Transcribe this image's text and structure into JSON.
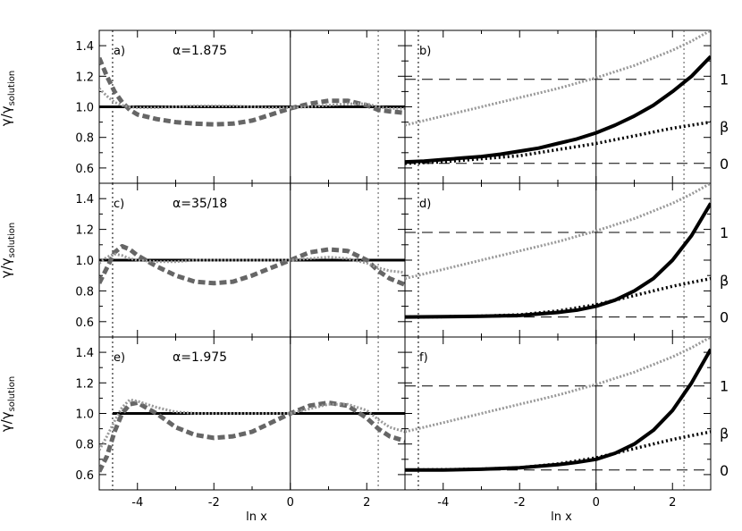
{
  "figure": {
    "ylabel_left": "γ/γ",
    "ylabel_sub": "solution",
    "xlabel": "ln x"
  },
  "chart_data": [
    {
      "id": "a",
      "panel_label": "a)",
      "annotation": "α=1.875",
      "type": "line",
      "xlim": [
        -5,
        3
      ],
      "ylim": [
        0.5,
        1.5
      ],
      "vlines": {
        "zero": 0,
        "left_cut": -4.65,
        "right_cut": 2.3
      },
      "x_ticks": [
        "-4",
        "-2",
        "0",
        "2"
      ],
      "y_ticks": [
        "0.6",
        "0.8",
        "1.0",
        "1.2",
        "1.4"
      ],
      "series": [
        {
          "style": "solid",
          "x": [
            -5,
            3
          ],
          "y": [
            1.0,
            1.0
          ]
        },
        {
          "style": "dashed",
          "x": [
            -5,
            -4.8,
            -4.6,
            -4.4,
            -4.2,
            -4,
            -3.5,
            -3,
            -2.5,
            -2,
            -1.5,
            -1,
            -0.5,
            0,
            0.5,
            1,
            1.5,
            2,
            2.3,
            2.6,
            3
          ],
          "y": [
            1.32,
            1.2,
            1.1,
            1.03,
            0.98,
            0.95,
            0.92,
            0.9,
            0.89,
            0.885,
            0.89,
            0.91,
            0.95,
            0.99,
            1.02,
            1.04,
            1.04,
            1.01,
            0.98,
            0.97,
            0.96
          ]
        },
        {
          "style": "dotted-grey",
          "x": [
            -5,
            -4.8,
            -4.6,
            -4.4,
            -4.2,
            -4,
            -3.5,
            -3,
            -2.5,
            -2,
            -1.5,
            -1,
            -0.5,
            0,
            0.5,
            1,
            1.5,
            2,
            2.3,
            2.6,
            3
          ],
          "y": [
            1.12,
            1.07,
            1.03,
            1.01,
            1.0,
            0.995,
            0.995,
            1.0,
            1.005,
            1.005,
            1.005,
            1.0,
            0.995,
            0.995,
            1.0,
            1.01,
            1.02,
            1.02,
            1.0,
            0.99,
            0.99
          ]
        }
      ]
    },
    {
      "id": "b",
      "panel_label": "b)",
      "annotation": "",
      "type": "line",
      "xlim": [
        -5,
        3
      ],
      "ylim": [
        0.5,
        1.5
      ],
      "vlines": {
        "zero": 0,
        "left_cut": -4.65,
        "right_cut": 2.3
      },
      "hlines": [
        0.63,
        1.18
      ],
      "x_ticks": [
        "-4",
        "-2",
        "0",
        "2"
      ],
      "right_labels": [
        {
          "text": "1",
          "y": 1.18
        },
        {
          "text": "β",
          "y": 0.87
        },
        {
          "text": "0",
          "y": 0.63
        }
      ],
      "series": [
        {
          "style": "solid-thick",
          "x": [
            -5,
            -4.5,
            -4,
            -3.5,
            -3,
            -2.5,
            -2,
            -1.5,
            -1,
            -0.5,
            0,
            0.5,
            1,
            1.5,
            2,
            2.5,
            3
          ],
          "y": [
            0.64,
            0.645,
            0.655,
            0.665,
            0.675,
            0.69,
            0.71,
            0.73,
            0.76,
            0.79,
            0.83,
            0.88,
            0.94,
            1.01,
            1.1,
            1.2,
            1.33
          ]
        },
        {
          "style": "dotted",
          "x": [
            -5,
            -4,
            -3,
            -2,
            -1,
            0,
            1,
            2,
            3
          ],
          "y": [
            0.63,
            0.64,
            0.66,
            0.68,
            0.72,
            0.76,
            0.81,
            0.86,
            0.9
          ]
        },
        {
          "style": "dotted-grey",
          "x": [
            -5,
            -4,
            -3,
            -2,
            -1,
            0,
            1,
            2,
            2.5,
            3
          ],
          "y": [
            0.88,
            0.94,
            1.0,
            1.06,
            1.12,
            1.19,
            1.27,
            1.37,
            1.43,
            1.5
          ]
        }
      ]
    },
    {
      "id": "c",
      "panel_label": "c)",
      "annotation": "α=35/18",
      "type": "line",
      "xlim": [
        -5,
        3
      ],
      "ylim": [
        0.5,
        1.5
      ],
      "vlines": {
        "zero": 0,
        "left_cut": -4.65,
        "right_cut": 2.3
      },
      "x_ticks": [
        "-4",
        "-2",
        "0",
        "2"
      ],
      "y_ticks": [
        "0.6",
        "0.8",
        "1.0",
        "1.2",
        "1.4"
      ],
      "series": [
        {
          "style": "solid",
          "x": [
            -5,
            3
          ],
          "y": [
            1.0,
            1.0
          ]
        },
        {
          "style": "dashed",
          "x": [
            -5,
            -4.8,
            -4.6,
            -4.4,
            -4.2,
            -4,
            -3.5,
            -3,
            -2.5,
            -2,
            -1.5,
            -1,
            -0.5,
            0,
            0.5,
            1,
            1.5,
            2,
            2.3,
            2.6,
            3
          ],
          "y": [
            0.85,
            0.95,
            1.05,
            1.09,
            1.07,
            1.03,
            0.96,
            0.9,
            0.86,
            0.85,
            0.86,
            0.9,
            0.95,
            1.0,
            1.05,
            1.07,
            1.06,
            1.0,
            0.93,
            0.88,
            0.84
          ]
        },
        {
          "style": "dotted-grey",
          "x": [
            -5,
            -4.8,
            -4.6,
            -4.4,
            -4.2,
            -4,
            -3.5,
            -3,
            -2.5,
            -2,
            -1.5,
            -1,
            -0.5,
            0,
            0.5,
            1,
            1.5,
            2,
            2.3,
            2.6,
            3
          ],
          "y": [
            0.98,
            1.02,
            1.04,
            1.03,
            1.01,
            1.0,
            0.99,
            0.99,
            1.0,
            1.0,
            1.0,
            1.0,
            1.0,
            1.0,
            1.01,
            1.02,
            1.01,
            0.98,
            0.95,
            0.93,
            0.92
          ]
        }
      ]
    },
    {
      "id": "d",
      "panel_label": "d)",
      "annotation": "",
      "type": "line",
      "xlim": [
        -5,
        3
      ],
      "ylim": [
        0.5,
        1.5
      ],
      "vlines": {
        "zero": 0,
        "left_cut": -4.65,
        "right_cut": 2.3
      },
      "hlines": [
        0.63,
        1.18
      ],
      "x_ticks": [
        "-4",
        "-2",
        "0",
        "2"
      ],
      "right_labels": [
        {
          "text": "1",
          "y": 1.18
        },
        {
          "text": "β",
          "y": 0.87
        },
        {
          "text": "0",
          "y": 0.63
        }
      ],
      "series": [
        {
          "style": "solid-thick",
          "x": [
            -5,
            -4,
            -3,
            -2,
            -1,
            -0.5,
            0,
            0.5,
            1,
            1.5,
            2,
            2.5,
            3
          ],
          "y": [
            0.63,
            0.632,
            0.635,
            0.64,
            0.66,
            0.675,
            0.7,
            0.74,
            0.8,
            0.88,
            1.0,
            1.16,
            1.37
          ]
        },
        {
          "style": "dotted",
          "x": [
            -5,
            -4,
            -3,
            -2,
            -1,
            0,
            1,
            2,
            3
          ],
          "y": [
            0.63,
            0.632,
            0.636,
            0.645,
            0.67,
            0.71,
            0.77,
            0.83,
            0.88
          ]
        },
        {
          "style": "dotted-grey",
          "x": [
            -5,
            -4,
            -3,
            -2,
            -1,
            0,
            1,
            2,
            2.5,
            3
          ],
          "y": [
            0.88,
            0.94,
            1.0,
            1.06,
            1.12,
            1.19,
            1.27,
            1.37,
            1.43,
            1.5
          ]
        }
      ]
    },
    {
      "id": "e",
      "panel_label": "e)",
      "annotation": "α=1.975",
      "type": "line",
      "xlim": [
        -5,
        3
      ],
      "ylim": [
        0.5,
        1.5
      ],
      "vlines": {
        "zero": 0,
        "left_cut": -4.65,
        "right_cut": 2.3
      },
      "x_ticks": [
        "-4",
        "-2",
        "0",
        "2"
      ],
      "y_ticks": [
        "0.6",
        "0.8",
        "1.0",
        "1.2",
        "1.4"
      ],
      "series": [
        {
          "style": "solid",
          "x": [
            -4.65,
            3
          ],
          "y": [
            1.0,
            1.0
          ]
        },
        {
          "style": "dashed",
          "x": [
            -5,
            -4.8,
            -4.6,
            -4.4,
            -4.2,
            -4,
            -3.5,
            -3,
            -2.5,
            -2,
            -1.5,
            -1,
            -0.5,
            0,
            0.5,
            1,
            1.5,
            2,
            2.3,
            2.6,
            3
          ],
          "y": [
            0.62,
            0.72,
            0.88,
            1.0,
            1.06,
            1.07,
            1.0,
            0.91,
            0.86,
            0.84,
            0.85,
            0.88,
            0.94,
            1.0,
            1.05,
            1.07,
            1.05,
            0.97,
            0.9,
            0.85,
            0.82
          ]
        },
        {
          "style": "dotted-grey",
          "x": [
            -5,
            -4.8,
            -4.6,
            -4.4,
            -4.2,
            -4,
            -3.5,
            -3,
            -2.5,
            -2,
            -1.5,
            -1,
            -0.5,
            0,
            0.5,
            1,
            1.5,
            2,
            2.3,
            2.6,
            3
          ],
          "y": [
            0.76,
            0.85,
            0.95,
            1.04,
            1.09,
            1.08,
            1.04,
            1.01,
            1.0,
            1.0,
            1.0,
            1.0,
            1.0,
            1.0,
            1.03,
            1.06,
            1.06,
            1.02,
            0.96,
            0.91,
            0.88
          ]
        }
      ]
    },
    {
      "id": "f",
      "panel_label": "f)",
      "annotation": "",
      "type": "line",
      "xlim": [
        -5,
        3
      ],
      "ylim": [
        0.5,
        1.5
      ],
      "vlines": {
        "zero": 0,
        "left_cut": -4.65,
        "right_cut": 2.3
      },
      "hlines": [
        0.63,
        1.18
      ],
      "x_ticks": [
        "-4",
        "-2",
        "0",
        "2"
      ],
      "right_labels": [
        {
          "text": "1",
          "y": 1.18
        },
        {
          "text": "β",
          "y": 0.87
        },
        {
          "text": "0",
          "y": 0.63
        }
      ],
      "series": [
        {
          "style": "solid-thick",
          "x": [
            -5,
            -4,
            -3,
            -2,
            -1,
            -0.5,
            0,
            0.5,
            1,
            1.5,
            2,
            2.5,
            3
          ],
          "y": [
            0.63,
            0.63,
            0.635,
            0.645,
            0.665,
            0.68,
            0.7,
            0.74,
            0.8,
            0.89,
            1.02,
            1.2,
            1.42
          ]
        },
        {
          "style": "dotted",
          "x": [
            -5,
            -4,
            -3,
            -2,
            -1,
            0,
            1,
            2,
            3
          ],
          "y": [
            0.63,
            0.632,
            0.636,
            0.645,
            0.67,
            0.71,
            0.77,
            0.83,
            0.88
          ]
        },
        {
          "style": "dotted-grey",
          "x": [
            -5,
            -4,
            -3,
            -2,
            -1,
            0,
            1,
            2,
            2.5,
            3
          ],
          "y": [
            0.88,
            0.94,
            1.0,
            1.06,
            1.12,
            1.19,
            1.27,
            1.37,
            1.43,
            1.5
          ]
        }
      ]
    }
  ]
}
